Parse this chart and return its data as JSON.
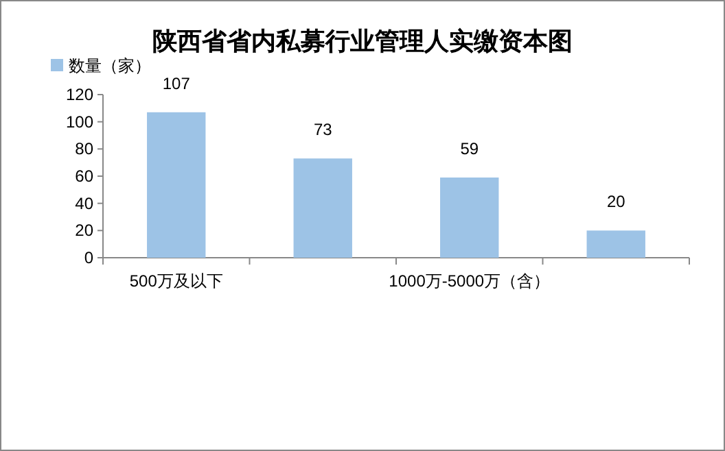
{
  "chart_data": {
    "type": "bar",
    "title": "陕西省省内私募行业管理人实缴资本图",
    "categories": [
      "500万及以下",
      null,
      "1000万-5000万（含）",
      null
    ],
    "series": [
      {
        "name": "数量（家）",
        "color": "#9dc3e6",
        "values": [
          107,
          73,
          59,
          20
        ]
      }
    ],
    "ylim": [
      0,
      120
    ],
    "yticks": [
      0,
      20,
      40,
      60,
      80,
      100,
      120
    ],
    "data_labels": true,
    "legend": "top left",
    "grid": false
  }
}
